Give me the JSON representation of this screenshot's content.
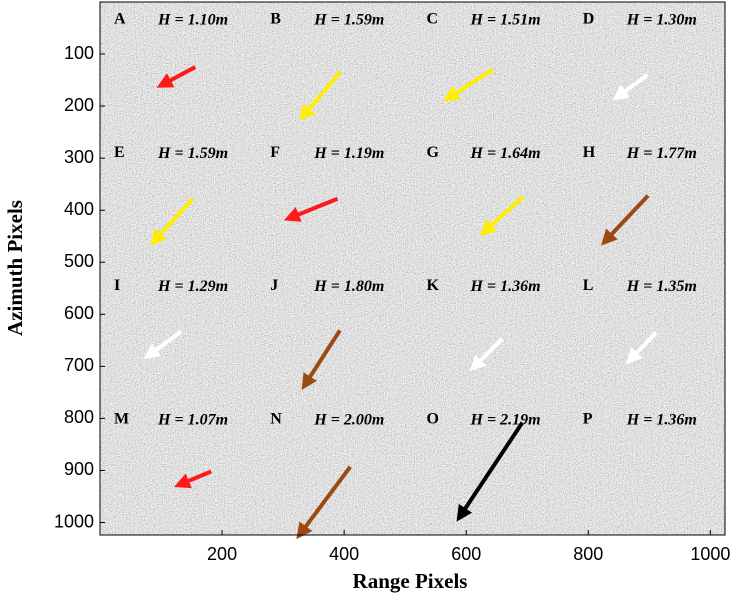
{
  "chart_data": {
    "type": "image-grid",
    "xlabel": "Range Pixels",
    "ylabel": "Azimuth Pixels",
    "xlim": [
      0,
      1024
    ],
    "ylim": [
      0,
      1024
    ],
    "xticks": [
      200,
      400,
      600,
      800,
      1000
    ],
    "yticks": [
      100,
      200,
      300,
      400,
      500,
      600,
      700,
      800,
      900,
      1000
    ],
    "tile_size": 256,
    "columns": 4,
    "panels": [
      {
        "label": "A",
        "annotation": "H = 1.10m",
        "arrow": {
          "x": [
            156,
            102
          ],
          "y": [
            125,
            159
          ],
          "color": "#ff1a1a"
        }
      },
      {
        "label": "B",
        "annotation": "H = 1.59m",
        "arrow": {
          "x": [
            394,
            333
          ],
          "y": [
            134,
            219
          ],
          "color": "#ffee00"
        }
      },
      {
        "label": "C",
        "annotation": "H = 1.51m",
        "arrow": {
          "x": [
            644,
            571
          ],
          "y": [
            129,
            184
          ],
          "color": "#ffee00"
        }
      },
      {
        "label": "D",
        "annotation": "H = 1.30m",
        "arrow": {
          "x": [
            897,
            848
          ],
          "y": [
            140,
            182
          ],
          "color": "#ffffff"
        }
      },
      {
        "label": "E",
        "annotation": "H = 1.59m",
        "arrow": {
          "x": [
            152,
            89
          ],
          "y": [
            378,
            459
          ],
          "color": "#ffee00"
        }
      },
      {
        "label": "F",
        "annotation": "H = 1.19m",
        "arrow": {
          "x": [
            389,
            311
          ],
          "y": [
            378,
            415
          ],
          "color": "#ff1a1a"
        }
      },
      {
        "label": "G",
        "annotation": "H = 1.64m",
        "arrow": {
          "x": [
            693,
            630
          ],
          "y": [
            374,
            441
          ],
          "color": "#ffee00"
        }
      },
      {
        "label": "H",
        "annotation": "H = 1.77m",
        "arrow": {
          "x": [
            898,
            828
          ],
          "y": [
            372,
            459
          ],
          "color": "#9b4a14"
        }
      },
      {
        "label": "I",
        "annotation": "H = 1.29m",
        "arrow": {
          "x": [
            133,
            80
          ],
          "y": [
            633,
            679
          ],
          "color": "#ffffff"
        }
      },
      {
        "label": "J",
        "annotation": "H = 1.80m",
        "arrow": {
          "x": [
            393,
            336
          ],
          "y": [
            631,
            735
          ],
          "color": "#9b4a14"
        }
      },
      {
        "label": "K",
        "annotation": "H = 1.36m",
        "arrow": {
          "x": [
            659,
            613
          ],
          "y": [
            647,
            701
          ],
          "color": "#ffffff"
        }
      },
      {
        "label": "L",
        "annotation": "H = 1.35m",
        "arrow": {
          "x": [
            911,
            869
          ],
          "y": [
            635,
            687
          ],
          "color": "#ffffff"
        }
      },
      {
        "label": "M",
        "annotation": "H = 1.07m",
        "arrow": {
          "x": [
            182,
            131
          ],
          "y": [
            902,
            927
          ],
          "color": "#ff1a1a"
        }
      },
      {
        "label": "N",
        "annotation": "H = 2.00m",
        "arrow": {
          "x": [
            410,
            328
          ],
          "y": [
            893,
            1022
          ],
          "color": "#9b4a14"
        }
      },
      {
        "label": "O",
        "annotation": "H = 2.19m",
        "arrow": {
          "x": [
            692,
            590
          ],
          "y": [
            808,
            988
          ],
          "color": "#000000"
        }
      },
      {
        "label": "P",
        "annotation": "H = 1.36m"
      }
    ]
  }
}
